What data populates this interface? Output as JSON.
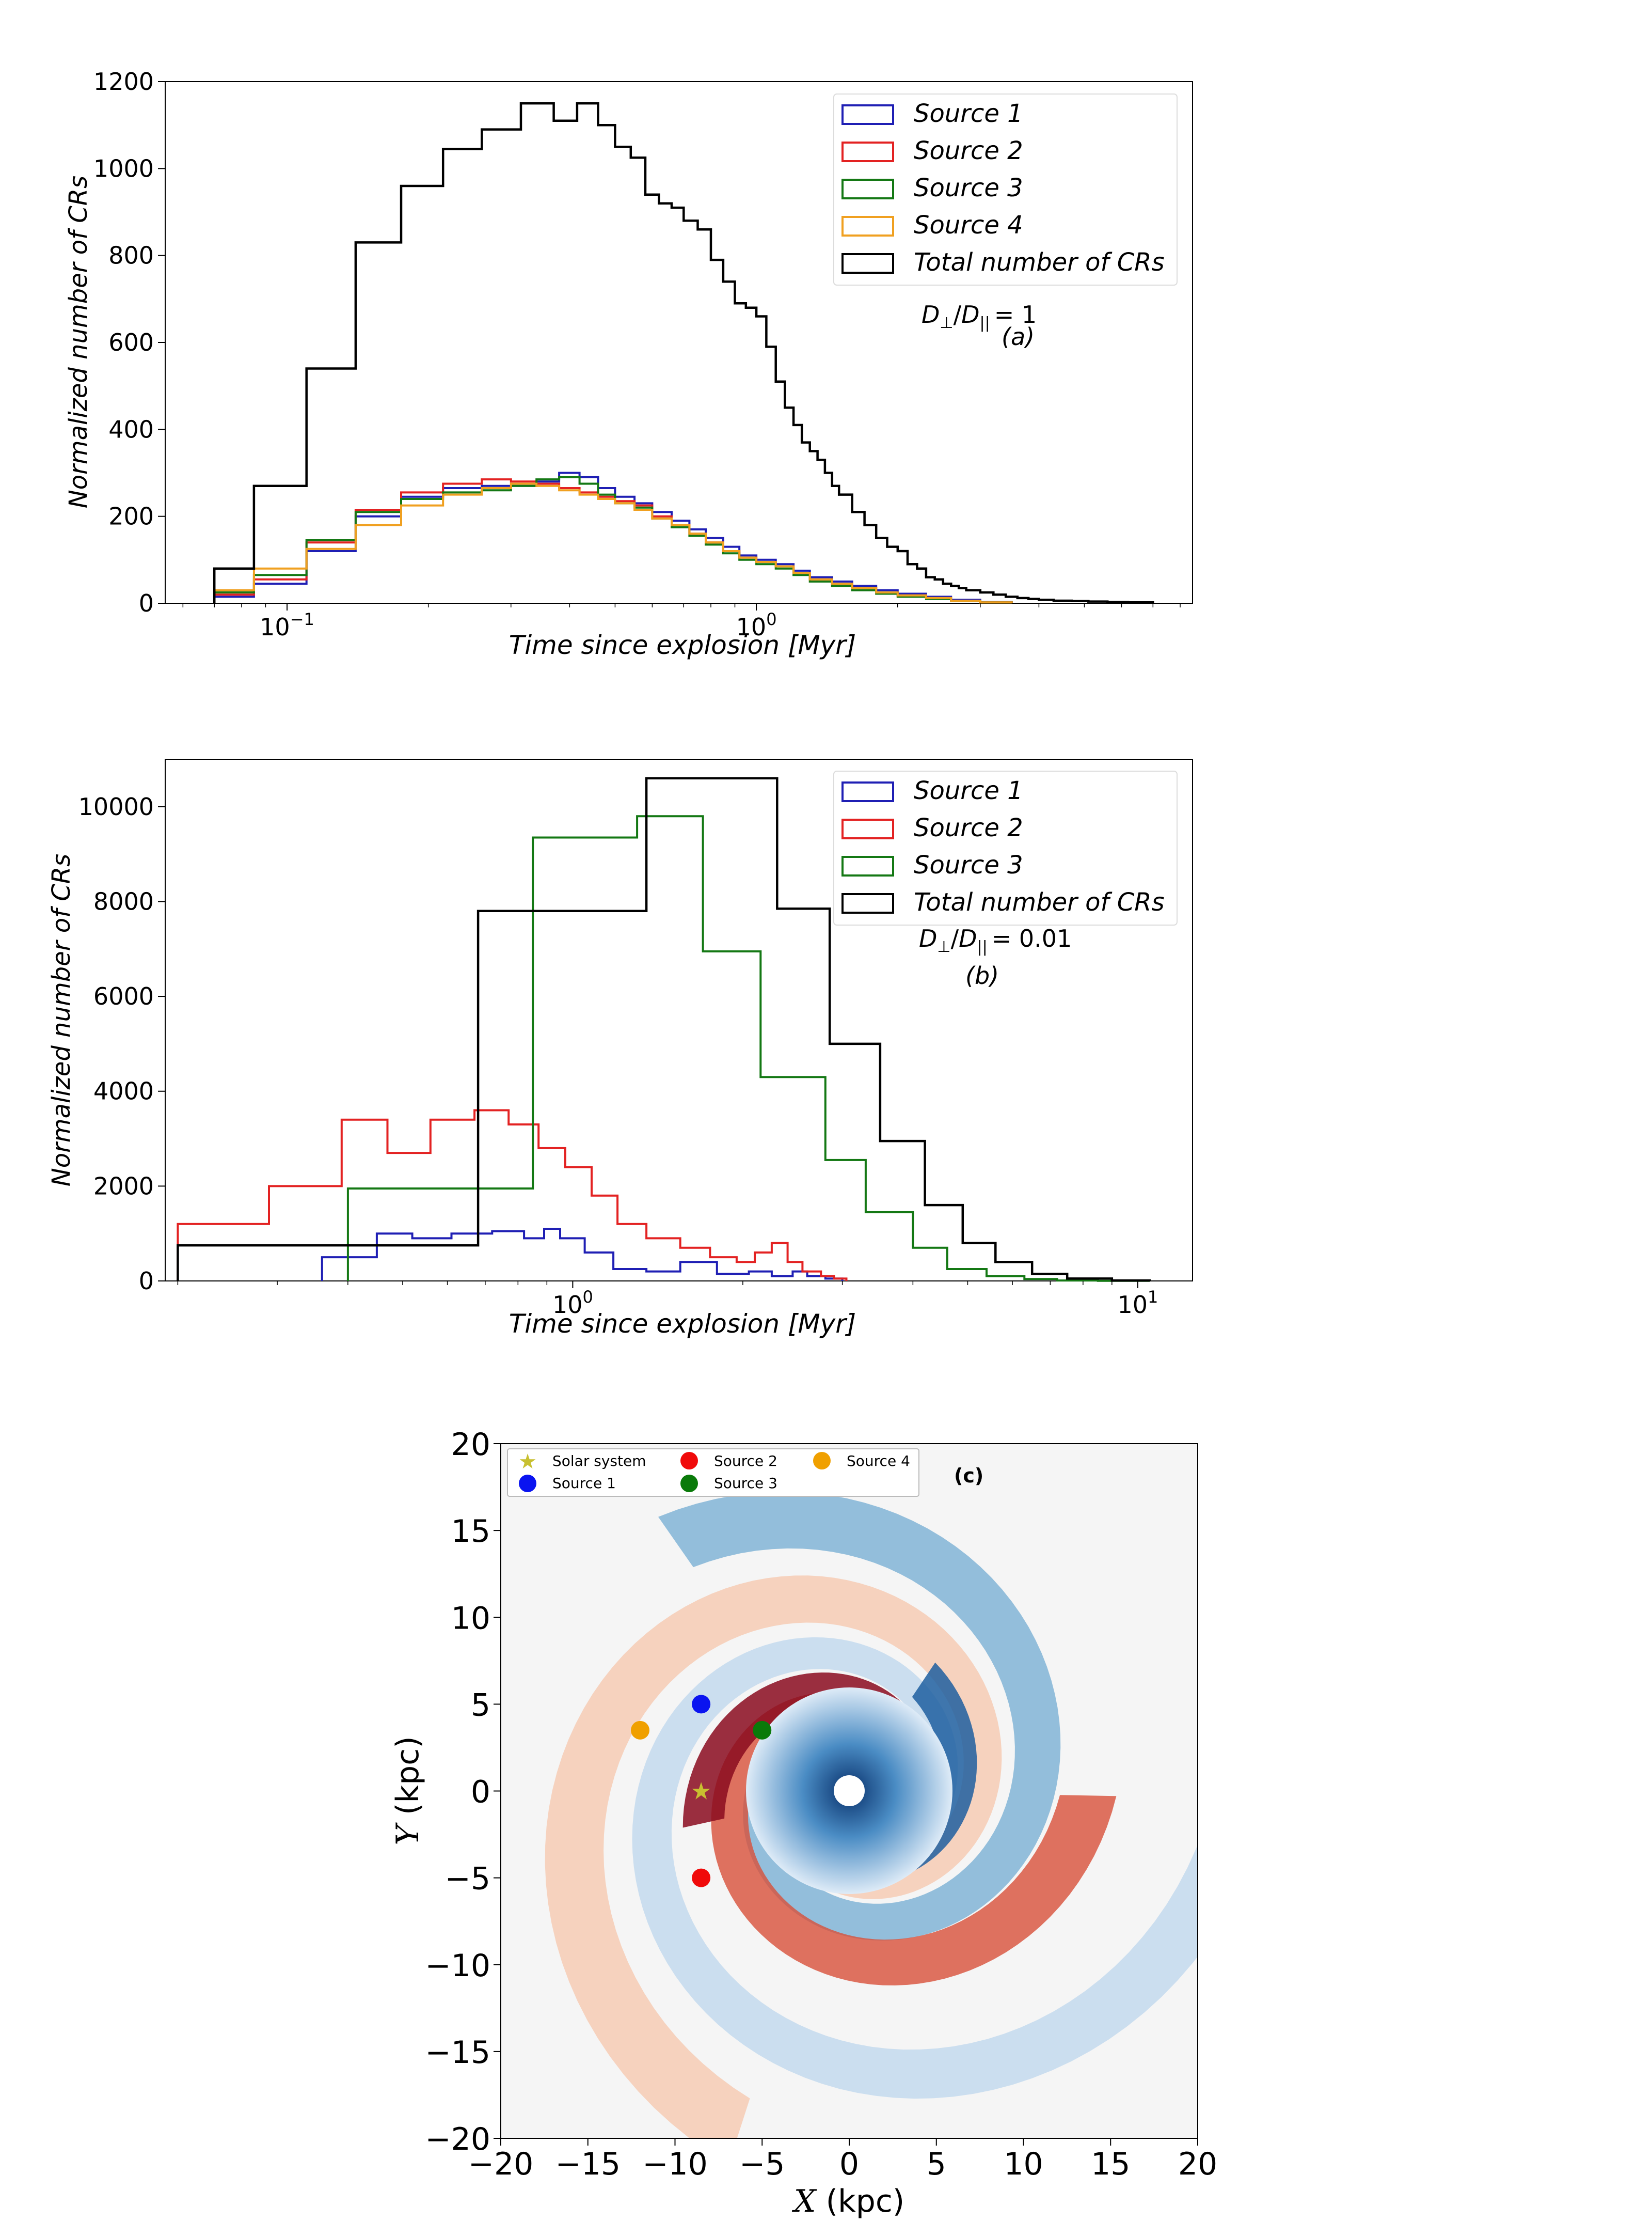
{
  "chart_data": [
    {
      "panel": "a",
      "type": "line",
      "step": true,
      "xscale": "log",
      "xlim": [
        0.055,
        8.5
      ],
      "ylim": [
        0,
        1200
      ],
      "yticks": [
        "0",
        "200",
        "400",
        "600",
        "800",
        "1000",
        "1200"
      ],
      "ytick_values": [
        0,
        200,
        400,
        600,
        800,
        1000,
        1200
      ],
      "xticks": [
        {
          "base": "10",
          "exp": "−1",
          "value": 0.1
        },
        {
          "base": "10",
          "exp": "0",
          "value": 1
        }
      ],
      "xlabel": "Time  since  explosion [Myr]",
      "ylabel": "Normalized  number of  CRs",
      "legend_position": "top-right",
      "annotation": "(a)",
      "ratio_label": {
        "num": "D",
        "num_sub": "⊥",
        "den": "D",
        "den_sub": "||",
        "value": "= 1"
      },
      "total": {
        "name": "Total number of CRs",
        "color": "#000000",
        "edges": [
          0.07,
          0.085,
          0.11,
          0.14,
          0.175,
          0.215,
          0.26,
          0.315,
          0.37,
          0.415,
          0.46,
          0.5,
          0.54,
          0.58,
          0.62,
          0.66,
          0.7,
          0.75,
          0.8,
          0.85,
          0.9,
          0.95,
          1.0,
          1.05,
          1.1,
          1.15,
          1.2,
          1.25,
          1.3,
          1.35,
          1.4,
          1.45,
          1.5,
          1.6,
          1.7,
          1.8,
          1.9,
          2.0,
          2.1,
          2.2,
          2.3,
          2.4,
          2.5,
          2.6,
          2.7,
          2.8,
          3.0,
          3.2,
          3.4,
          3.6,
          3.8,
          4.0,
          4.3,
          4.7,
          5.1,
          5.6,
          6.2,
          7.0
        ],
        "values": [
          80,
          270,
          540,
          830,
          960,
          1045,
          1090,
          1150,
          1110,
          1150,
          1100,
          1050,
          1025,
          940,
          920,
          910,
          880,
          860,
          790,
          740,
          690,
          680,
          660,
          590,
          510,
          450,
          410,
          370,
          350,
          330,
          300,
          270,
          250,
          210,
          180,
          150,
          130,
          120,
          90,
          80,
          60,
          55,
          45,
          40,
          35,
          30,
          25,
          20,
          15,
          12,
          10,
          8,
          6,
          5,
          4,
          3,
          2
        ]
      },
      "series": [
        {
          "name": "Source 1",
          "color": "#1f1fb4",
          "edges": [
            0.07,
            0.085,
            0.11,
            0.14,
            0.175,
            0.215,
            0.26,
            0.3,
            0.34,
            0.38,
            0.42,
            0.46,
            0.5,
            0.55,
            0.6,
            0.66,
            0.72,
            0.78,
            0.85,
            0.92,
            1.0,
            1.1,
            1.2,
            1.3,
            1.45,
            1.6,
            1.8,
            2.0,
            2.3,
            2.6,
            3.0,
            3.5
          ],
          "values": [
            15,
            45,
            120,
            200,
            245,
            265,
            270,
            270,
            280,
            300,
            290,
            265,
            245,
            230,
            210,
            190,
            170,
            150,
            130,
            110,
            100,
            90,
            75,
            60,
            50,
            40,
            30,
            22,
            15,
            8,
            3
          ]
        },
        {
          "name": "Source 2",
          "color": "#e32222",
          "edges": [
            0.07,
            0.085,
            0.11,
            0.14,
            0.175,
            0.215,
            0.26,
            0.3,
            0.34,
            0.38,
            0.42,
            0.46,
            0.5,
            0.55,
            0.6,
            0.66,
            0.72,
            0.78,
            0.85,
            0.92,
            1.0,
            1.1,
            1.2,
            1.3,
            1.45,
            1.6,
            1.8,
            2.0,
            2.3,
            2.6,
            3.0,
            3.5
          ],
          "values": [
            20,
            55,
            140,
            215,
            255,
            275,
            285,
            280,
            275,
            265,
            255,
            245,
            235,
            225,
            200,
            180,
            160,
            140,
            120,
            105,
            95,
            85,
            70,
            55,
            45,
            35,
            25,
            18,
            12,
            6,
            2
          ]
        },
        {
          "name": "Source 3",
          "color": "#147814",
          "edges": [
            0.07,
            0.085,
            0.11,
            0.14,
            0.175,
            0.215,
            0.26,
            0.3,
            0.34,
            0.38,
            0.42,
            0.46,
            0.5,
            0.55,
            0.6,
            0.66,
            0.72,
            0.78,
            0.85,
            0.92,
            1.0,
            1.1,
            1.2,
            1.3,
            1.45,
            1.6,
            1.8,
            2.0,
            2.3,
            2.6,
            3.0,
            3.5
          ],
          "values": [
            25,
            65,
            145,
            210,
            240,
            255,
            260,
            270,
            285,
            290,
            275,
            250,
            230,
            220,
            195,
            175,
            155,
            135,
            115,
            100,
            90,
            80,
            65,
            50,
            40,
            30,
            22,
            15,
            10,
            5,
            2
          ]
        },
        {
          "name": "Source 4",
          "color": "#f0a020",
          "edges": [
            0.07,
            0.085,
            0.11,
            0.14,
            0.175,
            0.215,
            0.26,
            0.3,
            0.34,
            0.38,
            0.42,
            0.46,
            0.5,
            0.55,
            0.6,
            0.66,
            0.72,
            0.78,
            0.85,
            0.92,
            1.0,
            1.1,
            1.2,
            1.3,
            1.45,
            1.6,
            1.8,
            2.0,
            2.3,
            2.6,
            3.0,
            3.5
          ],
          "values": [
            30,
            80,
            125,
            180,
            225,
            250,
            265,
            275,
            270,
            260,
            250,
            240,
            230,
            215,
            195,
            180,
            160,
            140,
            120,
            105,
            95,
            85,
            70,
            55,
            45,
            35,
            25,
            18,
            12,
            6,
            2
          ]
        }
      ]
    },
    {
      "panel": "b",
      "type": "line",
      "step": true,
      "xscale": "log",
      "xlim": [
        0.19,
        12.5
      ],
      "ylim": [
        0,
        11000
      ],
      "yticks": [
        "0",
        "2000",
        "4000",
        "6000",
        "8000",
        "10000"
      ],
      "ytick_values": [
        0,
        2000,
        4000,
        6000,
        8000,
        10000
      ],
      "xticks": [
        {
          "base": "10",
          "exp": "0",
          "value": 1
        },
        {
          "base": "10",
          "exp": "1",
          "value": 10
        }
      ],
      "xlabel": "Time  since  explosion [Myr]",
      "ylabel": "Normalized  number of  CRs",
      "legend_position": "top-right",
      "annotation": "(b)",
      "ratio_label": {
        "num": "D",
        "num_sub": "⊥",
        "den": "D",
        "den_sub": "||",
        "value": "= 0.01"
      },
      "total": {
        "name": "Total number of CRs",
        "color": "#000000",
        "edges": [
          0.2,
          0.68,
          1.35,
          2.3,
          2.85,
          3.5,
          4.2,
          4.9,
          5.6,
          6.5,
          7.5,
          9.0,
          10.5
        ],
        "values": [
          750,
          7800,
          10600,
          7850,
          5000,
          2950,
          1600,
          800,
          400,
          150,
          50,
          10
        ]
      },
      "series": [
        {
          "name": "Source 1",
          "color": "#1f1fb4",
          "edges": [
            0.36,
            0.45,
            0.52,
            0.61,
            0.72,
            0.82,
            0.89,
            0.95,
            1.05,
            1.18,
            1.35,
            1.55,
            1.8,
            2.05,
            2.25,
            2.45,
            2.6,
            2.8,
            3.0
          ],
          "values": [
            500,
            1000,
            900,
            1000,
            1050,
            900,
            1100,
            900,
            600,
            250,
            200,
            400,
            150,
            200,
            100,
            200,
            100,
            50
          ]
        },
        {
          "name": "Source 2",
          "color": "#e32222",
          "edges": [
            0.2,
            0.29,
            0.39,
            0.47,
            0.56,
            0.67,
            0.77,
            0.87,
            0.97,
            1.08,
            1.2,
            1.35,
            1.55,
            1.75,
            1.95,
            2.1,
            2.25,
            2.4,
            2.55,
            2.75,
            2.9,
            3.05
          ],
          "values": [
            1200,
            2000,
            3400,
            2700,
            3400,
            3600,
            3300,
            2800,
            2400,
            1800,
            1200,
            900,
            700,
            500,
            400,
            600,
            800,
            400,
            200,
            100,
            50
          ]
        },
        {
          "name": "Source 3",
          "color": "#147814",
          "edges": [
            0.4,
            0.85,
            1.3,
            1.7,
            2.15,
            2.8,
            3.3,
            4.0,
            4.6,
            5.4,
            6.3,
            7.2,
            8.5,
            10.5
          ],
          "values": [
            1950,
            9350,
            9800,
            6950,
            4300,
            2550,
            1450,
            700,
            250,
            100,
            40,
            10,
            3
          ]
        }
      ]
    },
    {
      "panel": "c",
      "type": "scatter",
      "xlim": [
        -20,
        20
      ],
      "ylim": [
        -20,
        20
      ],
      "xticks": [
        "−20",
        "−15",
        "−10",
        "−5",
        "0",
        "5",
        "10",
        "15",
        "20"
      ],
      "xtick_values": [
        -20,
        -15,
        -10,
        -5,
        0,
        5,
        10,
        15,
        20
      ],
      "yticks": [
        "−20",
        "−15",
        "−10",
        "−5",
        "0",
        "5",
        "10",
        "15",
        "20"
      ],
      "ytick_values": [
        -20,
        -15,
        -10,
        -5,
        0,
        5,
        10,
        15,
        20
      ],
      "xlabel_sym": "X",
      "ylabel_sym": "Y",
      "unit": " (kpc)",
      "annotation": "(c)",
      "legend": [
        "Solar system",
        "Source 1",
        "Source 2",
        "Source 3",
        "Source 4"
      ],
      "points": [
        {
          "name": "Solar system",
          "x": -8.5,
          "y": 0,
          "color": "#c8c030",
          "marker": "star"
        },
        {
          "name": "Source 1",
          "x": -8.5,
          "y": 5,
          "color": "#0a14f0",
          "marker": "circle"
        },
        {
          "name": "Source 2",
          "x": -8.5,
          "y": -5,
          "color": "#f00a0a",
          "marker": "circle"
        },
        {
          "name": "Source 3",
          "x": -5,
          "y": 3.5,
          "color": "#0a7a0a",
          "marker": "circle"
        },
        {
          "name": "Source 4",
          "x": -12,
          "y": 3.5,
          "color": "#f0a000",
          "marker": "circle"
        }
      ]
    }
  ],
  "colors": {
    "blue_dark": "#1f5fa0",
    "blue_mid": "#6aa6d0",
    "blue_light": "#c6dcee",
    "red_dark": "#8a0a1e",
    "red_mid": "#d8503a",
    "red_light": "#f6cbb4",
    "bg": "#f5f5f5"
  }
}
